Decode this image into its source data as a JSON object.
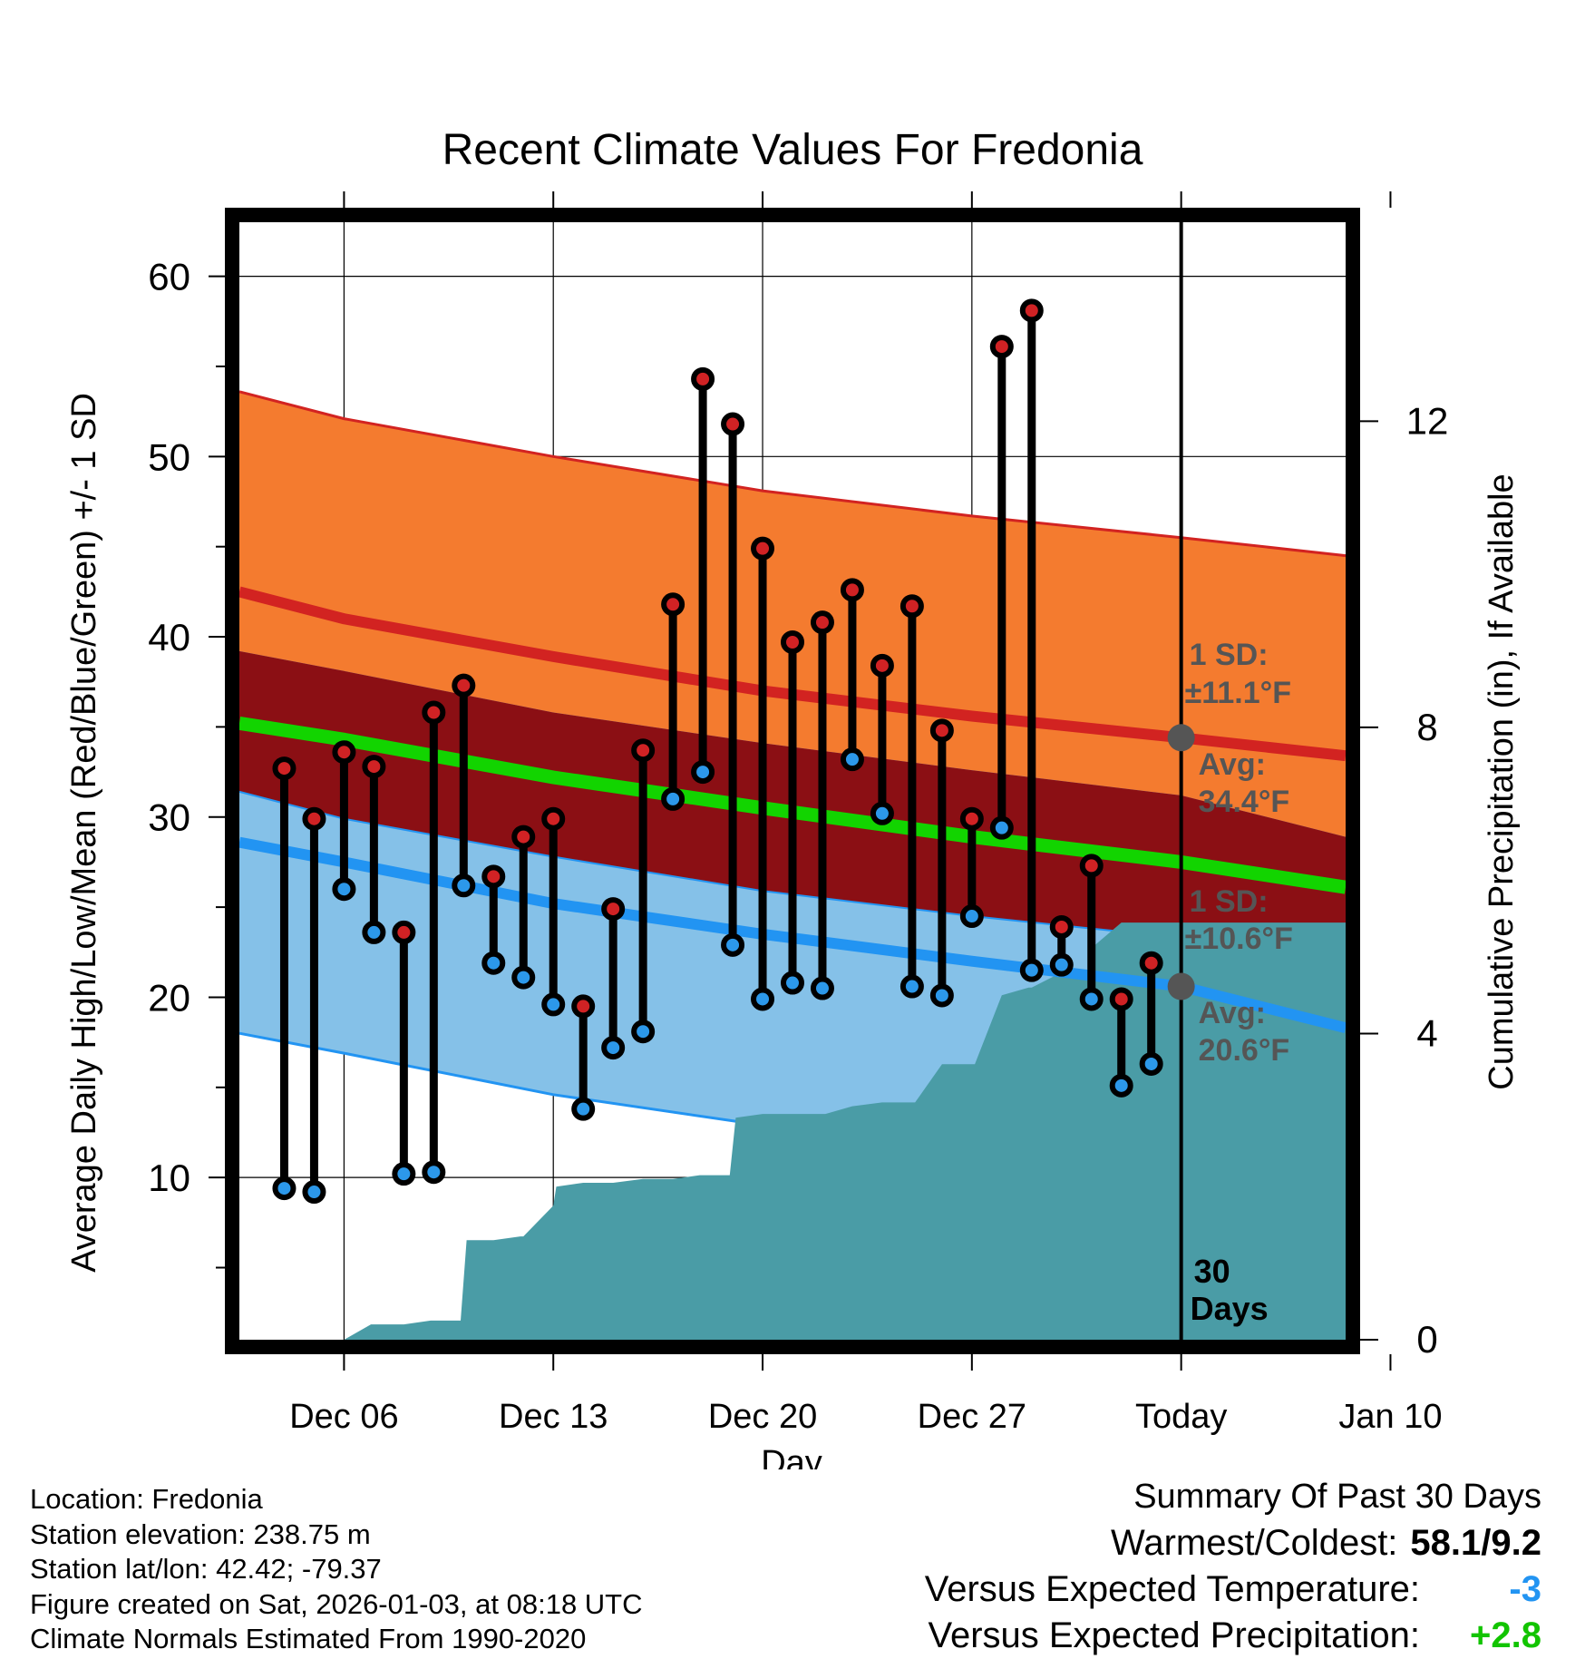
{
  "chart_data": {
    "type": "line",
    "title": "Recent Climate Values For Fredonia",
    "xlabel": "Day",
    "ylabel": "Average Daily High/Low/Mean (Red/Blue/Green) +/- 1 SD",
    "y2label": "Cumulative Precipitation (in), If Available",
    "xlim": [
      2.5,
      39.5
    ],
    "ylim": [
      1,
      63
    ],
    "y2lim": [
      0,
      14.6
    ],
    "yticks": [
      10,
      20,
      30,
      40,
      50,
      60
    ],
    "y2ticks": [
      0,
      4,
      8,
      12
    ],
    "xticks": [
      {
        "day": 6,
        "label": "Dec 06"
      },
      {
        "day": 13,
        "label": "Dec 13"
      },
      {
        "day": 20,
        "label": "Dec 20"
      },
      {
        "day": 27,
        "label": "Dec 27"
      },
      {
        "day": 34,
        "label": "Today"
      },
      {
        "day": 41,
        "label": "Jan 10"
      }
    ],
    "today_day": 34,
    "window_label": [
      "30",
      "Days"
    ],
    "normals": {
      "x": [
        2.5,
        6,
        13,
        20,
        27,
        34,
        39.5
      ],
      "high_avg": [
        42.5,
        41.0,
        38.9,
        37.0,
        35.6,
        34.4,
        33.4
      ],
      "high_sd": 11.1,
      "low_avg": [
        28.6,
        27.5,
        25.2,
        23.5,
        22.0,
        20.6,
        18.3
      ],
      "low_sd": 10.6,
      "mean_avg": [
        35.2,
        34.3,
        32.2,
        30.5,
        28.9,
        27.5,
        26.1
      ],
      "colors": {
        "high_band": "#f47b2f",
        "high_line": "#d22321",
        "overlap_band": "#8b0f14",
        "low_band": "#85c1e8",
        "low_line": "#2294f2",
        "mean_line": "#12d400",
        "precip": "#4a9ca6"
      }
    },
    "annotations": {
      "high": {
        "sd_label": "1 SD:",
        "sd_value": "±11.1°F",
        "avg_label": "Avg:",
        "avg_value": "34.4°F",
        "avg": 34.4
      },
      "low": {
        "sd_label": "1 SD:",
        "sd_value": "±10.6°F",
        "avg_label": "Avg:",
        "avg_value": "20.6°F",
        "avg": 20.6
      }
    },
    "series": [
      {
        "name": "Daily High",
        "x": [
          4,
          5,
          6,
          7,
          8,
          9,
          10,
          11,
          12,
          13,
          14,
          15,
          16,
          17,
          18,
          19,
          20,
          21,
          22,
          23,
          24,
          25,
          26,
          27,
          28,
          29,
          30,
          31,
          32,
          33
        ],
        "values": [
          32.7,
          29.9,
          33.6,
          32.8,
          23.6,
          35.8,
          37.3,
          26.7,
          28.9,
          29.9,
          19.5,
          24.9,
          33.7,
          41.8,
          54.3,
          51.8,
          44.9,
          39.7,
          40.8,
          42.6,
          38.4,
          41.7,
          34.8,
          29.9,
          56.1,
          58.1,
          23.9,
          27.3,
          19.9,
          21.9
        ]
      },
      {
        "name": "Daily Low",
        "x": [
          4,
          5,
          6,
          7,
          8,
          9,
          10,
          11,
          12,
          13,
          14,
          15,
          16,
          17,
          18,
          19,
          20,
          21,
          22,
          23,
          24,
          25,
          26,
          27,
          28,
          29,
          30,
          31,
          32,
          33
        ],
        "values": [
          9.4,
          9.2,
          26.0,
          23.6,
          10.2,
          10.3,
          26.2,
          21.9,
          21.1,
          19.6,
          13.8,
          17.2,
          18.1,
          31.0,
          32.5,
          22.9,
          19.9,
          20.8,
          20.5,
          33.2,
          30.2,
          20.6,
          20.1,
          24.5,
          29.4,
          21.5,
          21.8,
          19.9,
          15.1,
          16.3
        ]
      },
      {
        "name": "Cumulative Precipitation",
        "x": [
          5.7,
          6,
          6.9,
          8,
          8.9,
          9.9,
          10.1,
          11,
          11.9,
          12,
          13,
          13.1,
          14,
          14.9,
          15,
          16,
          17,
          17.9,
          18,
          18.9,
          19.1,
          20,
          21,
          22,
          22.1,
          23,
          24,
          25,
          25.1,
          26,
          26.9,
          27.1,
          28,
          28.9,
          29,
          30,
          30.9,
          31.1,
          32,
          33,
          34,
          34,
          39.5
        ],
        "values": [
          0,
          0,
          0.2,
          0.2,
          0.25,
          0.25,
          1.3,
          1.3,
          1.35,
          1.35,
          1.75,
          2.0,
          2.05,
          2.05,
          2.05,
          2.1,
          2.1,
          2.15,
          2.15,
          2.15,
          2.9,
          2.95,
          2.95,
          2.95,
          2.95,
          3.05,
          3.1,
          3.1,
          3.1,
          3.6,
          3.6,
          3.6,
          4.5,
          4.6,
          4.6,
          4.8,
          4.8,
          5.15,
          5.45,
          5.45,
          5.45,
          5.45,
          5.45
        ]
      }
    ]
  },
  "footer": {
    "location": "Location: Fredonia",
    "elevation": "Station elevation: 238.75 m",
    "latlon": "Station lat/lon: 42.42; -79.37",
    "created": "Figure created on Sat, 2026-01-03, at 08:18 UTC",
    "normals": "Climate Normals Estimated From 1990-2020"
  },
  "summary": {
    "heading": "Summary Of Past 30 Days",
    "warm_cold_label": "Warmest/Coldest:",
    "warm_cold_value": "58.1/9.2",
    "temp_label": "Versus Expected Temperature:",
    "temp_value": "-3",
    "temp_color": "#2294f2",
    "precip_label": "Versus Expected Precipitation:",
    "precip_value": "+2.8",
    "precip_color": "#12c400"
  }
}
